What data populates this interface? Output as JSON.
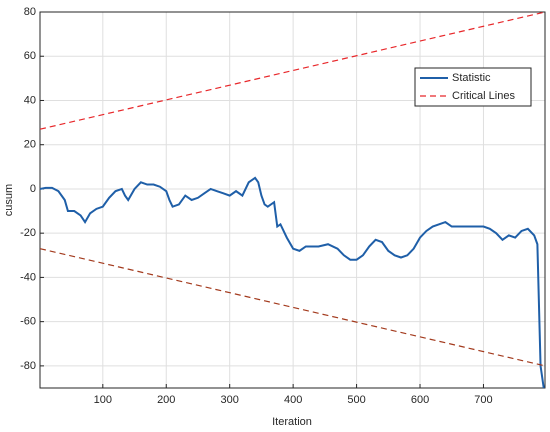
{
  "chart_data": {
    "type": "line",
    "xlabel": "Iteration",
    "ylabel": "cusum",
    "xlim": [
      1,
      797
    ],
    "ylim": [
      -90,
      80
    ],
    "xticks": [
      100,
      200,
      300,
      400,
      500,
      600,
      700
    ],
    "yticks": [
      -80,
      -60,
      -40,
      -20,
      0,
      20,
      40,
      60,
      80
    ],
    "grid": true,
    "legend": "upper right",
    "series": [
      {
        "name": "Statistic",
        "color": "#1f5fa8",
        "style": "solid",
        "x": [
          1,
          10,
          20,
          30,
          40,
          45,
          55,
          65,
          72,
          80,
          90,
          100,
          110,
          120,
          130,
          135,
          140,
          150,
          160,
          170,
          180,
          190,
          200,
          205,
          210,
          220,
          230,
          240,
          250,
          260,
          270,
          280,
          290,
          300,
          310,
          320,
          330,
          340,
          345,
          350,
          355,
          360,
          370,
          375,
          380,
          390,
          400,
          410,
          420,
          440,
          455,
          470,
          480,
          490,
          500,
          510,
          520,
          530,
          540,
          550,
          560,
          570,
          580,
          590,
          600,
          610,
          620,
          630,
          640,
          650,
          660,
          680,
          700,
          710,
          720,
          730,
          740,
          750,
          760,
          770,
          780,
          785,
          790,
          795
        ],
        "values": [
          0,
          0.5,
          0.5,
          -1,
          -5,
          -10,
          -10,
          -12,
          -15,
          -11,
          -9,
          -8,
          -4,
          -1,
          0,
          -3,
          -5,
          0,
          3,
          2,
          2,
          1,
          -1,
          -5,
          -8,
          -7,
          -3,
          -5,
          -4,
          -2,
          0,
          -1,
          -2,
          -3,
          -1,
          -3,
          3,
          5,
          3,
          -3,
          -7,
          -8,
          -6,
          -17,
          -16,
          -22,
          -27,
          -28,
          -26,
          -26,
          -25,
          -27,
          -30,
          -32,
          -32,
          -30,
          -26,
          -23,
          -24,
          -28,
          -30,
          -31,
          -30,
          -27,
          -22,
          -19,
          -17,
          -16,
          -15,
          -17,
          -17,
          -17,
          -17,
          -18,
          -20,
          -23,
          -21,
          -22,
          -19,
          -18,
          -21,
          -25,
          -80,
          -90
        ]
      },
      {
        "name": "Critical Lines",
        "color": "#e8272a",
        "style": "dashed",
        "x": [
          1,
          797
        ],
        "values": [
          27,
          80
        ],
        "lower": [
          -27,
          -80
        ],
        "lower_color": "#a33a1d"
      }
    ]
  }
}
